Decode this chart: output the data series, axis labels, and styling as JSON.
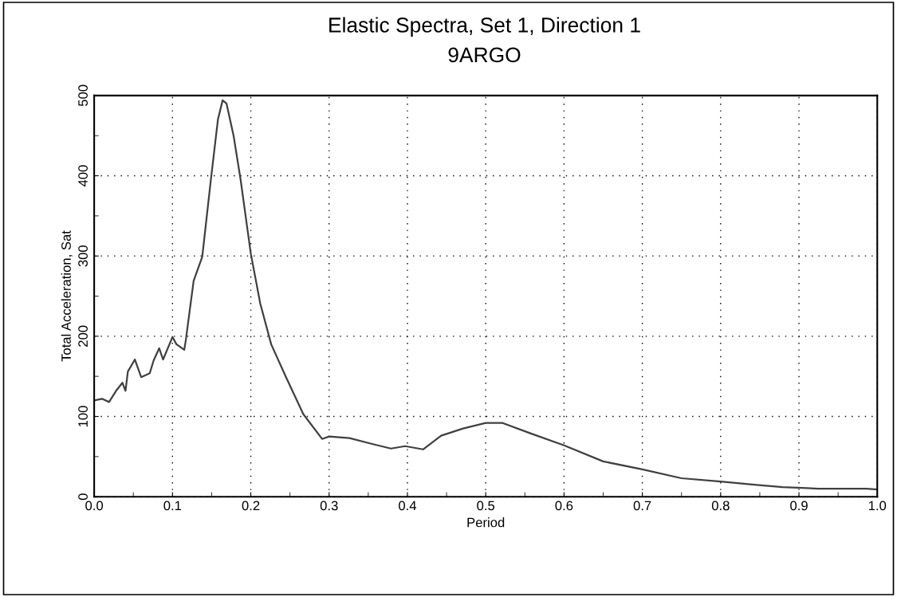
{
  "chart_data": {
    "type": "line",
    "title": "Elastic Spectra, Set 1, Direction 1",
    "subtitle": "9ARGO",
    "xlabel": "Period",
    "ylabel": "Total Acceleration, Sat",
    "x": [
      0,
      0.01,
      0.019,
      0.028,
      0.036,
      0.04,
      0.043,
      0.052,
      0.06,
      0.071,
      0.076,
      0.083,
      0.088,
      0.1,
      0.105,
      0.115,
      0.117,
      0.127,
      0.138,
      0.149,
      0.158,
      0.164,
      0.169,
      0.178,
      0.187,
      0.2,
      0.212,
      0.226,
      0.245,
      0.267,
      0.291,
      0.3,
      0.326,
      0.354,
      0.379,
      0.397,
      0.42,
      0.443,
      0.471,
      0.5,
      0.521,
      0.557,
      0.6,
      0.65,
      0.7,
      0.75,
      0.8,
      0.843,
      0.879,
      0.925,
      0.986,
      1.0
    ],
    "series": [
      {
        "color": "#404040",
        "values": [
          120,
          122,
          118,
          132,
          142,
          132,
          156,
          171,
          149,
          154,
          170,
          185,
          171,
          199,
          190,
          183,
          195,
          269,
          299,
          395,
          470,
          494,
          490,
          450,
          395,
          303,
          241,
          190,
          149,
          103,
          72,
          75,
          73,
          66,
          60,
          63,
          59,
          76,
          85,
          92,
          92,
          79,
          64,
          44,
          34,
          23,
          19,
          15,
          12,
          10,
          10,
          9
        ]
      }
    ],
    "xlim": [
      0,
      1
    ],
    "ylim": [
      0,
      500
    ],
    "xticks": [
      {
        "value": 0,
        "label": "0.0"
      },
      {
        "value": 0.05,
        "label": null
      },
      {
        "value": 0.1,
        "label": "0.1"
      },
      {
        "value": 0.15,
        "label": null
      },
      {
        "value": 0.2,
        "label": "0.2"
      },
      {
        "value": 0.25,
        "label": null
      },
      {
        "value": 0.3,
        "label": "0.3"
      },
      {
        "value": 0.35,
        "label": null
      },
      {
        "value": 0.4,
        "label": "0.4"
      },
      {
        "value": 0.45,
        "label": null
      },
      {
        "value": 0.5,
        "label": "0.5"
      },
      {
        "value": 0.55,
        "label": null
      },
      {
        "value": 0.6,
        "label": "0.6"
      },
      {
        "value": 0.65,
        "label": null
      },
      {
        "value": 0.7,
        "label": "0.7"
      },
      {
        "value": 0.75,
        "label": null
      },
      {
        "value": 0.8,
        "label": "0.8"
      },
      {
        "value": 0.85,
        "label": null
      },
      {
        "value": 0.9,
        "label": "0.9"
      },
      {
        "value": 0.95,
        "label": null
      },
      {
        "value": 1.0,
        "label": "1.0"
      }
    ],
    "yticks": [
      0,
      {
        "value": 50,
        "label": null
      },
      100,
      {
        "value": 150,
        "label": null
      },
      200,
      {
        "value": 250,
        "label": null
      },
      300,
      {
        "value": 350,
        "label": null
      },
      400,
      {
        "value": 450,
        "label": null
      },
      500
    ],
    "grid": true,
    "line_style": "solid",
    "marker": "none"
  }
}
